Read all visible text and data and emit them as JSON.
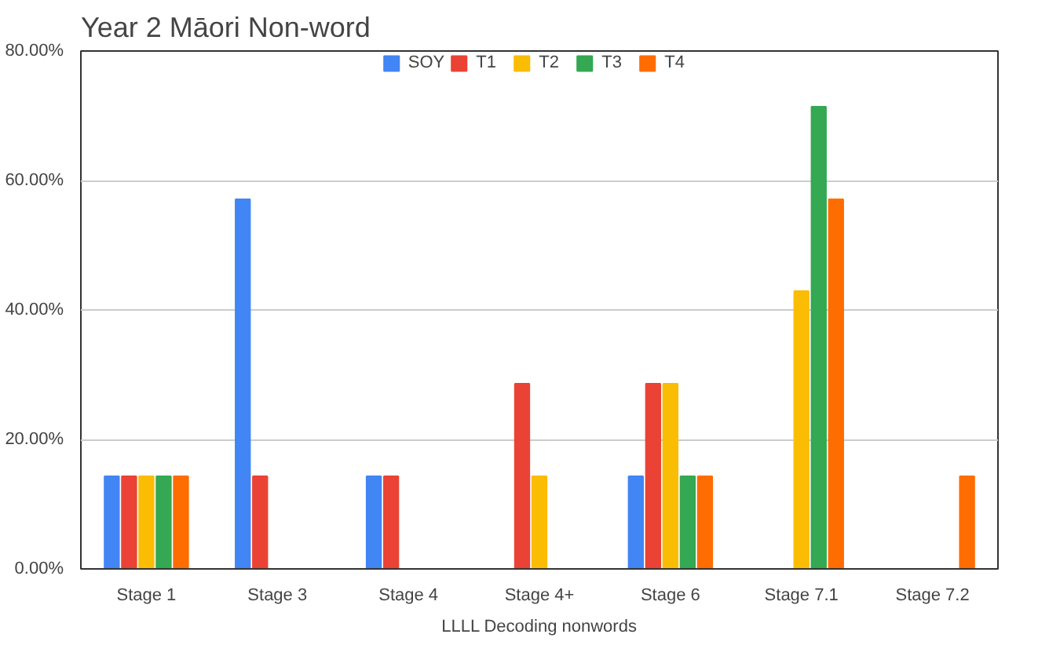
{
  "chart_data": {
    "type": "bar",
    "title": "Year 2 Māori Non-word",
    "xlabel": "LLLL Decoding nonwords",
    "categories": [
      "Stage 1",
      "Stage 3",
      "Stage 4",
      "Stage 4+",
      "Stage 6",
      "Stage 7.1",
      "Stage 7.2"
    ],
    "series": [
      {
        "name": "SOY",
        "color": "#4285f4",
        "values": [
          14.3,
          57.1,
          14.3,
          0,
          14.3,
          0,
          0
        ]
      },
      {
        "name": "T1",
        "color": "#ea4335",
        "values": [
          14.3,
          14.3,
          14.3,
          28.6,
          28.6,
          0,
          0
        ]
      },
      {
        "name": "T2",
        "color": "#fbbc04",
        "values": [
          14.3,
          0,
          0,
          14.3,
          28.6,
          42.9,
          0
        ]
      },
      {
        "name": "T3",
        "color": "#34a853",
        "values": [
          14.3,
          0,
          0,
          0,
          14.3,
          71.4,
          0
        ]
      },
      {
        "name": "T4",
        "color": "#ff6d01",
        "values": [
          14.3,
          0,
          0,
          0,
          14.3,
          57.1,
          14.3
        ]
      }
    ],
    "ylim": [
      0,
      80
    ],
    "yticks": [
      {
        "value": 0,
        "label": "0.00%"
      },
      {
        "value": 20,
        "label": "20.00%"
      },
      {
        "value": 40,
        "label": "40.00%"
      },
      {
        "value": 60,
        "label": "60.00%"
      },
      {
        "value": 80,
        "label": "80.00%"
      }
    ],
    "grid": "y",
    "legend": "top"
  }
}
